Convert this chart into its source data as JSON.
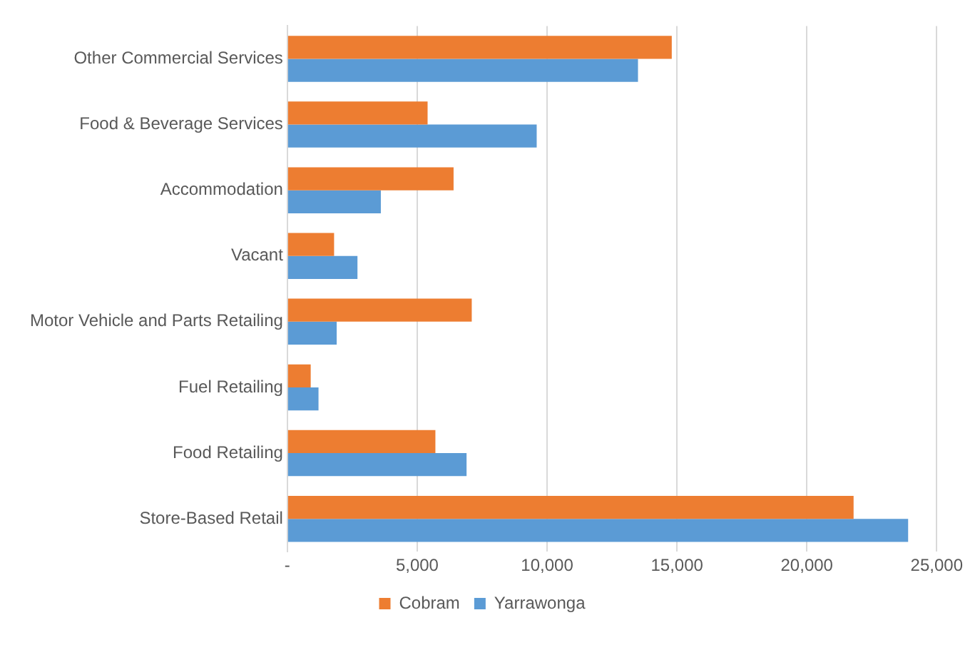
{
  "chart_data": {
    "type": "bar",
    "orientation": "horizontal",
    "categories": [
      "Other Commercial Services",
      "Food & Beverage Services",
      "Accommodation",
      "Vacant",
      "Motor Vehicle and Parts Retailing",
      "Fuel Retailing",
      "Food Retailing",
      "Store-Based Retail"
    ],
    "series": [
      {
        "name": "Cobram",
        "color": "#ed7d31",
        "values": [
          14800,
          5400,
          6400,
          1800,
          7100,
          900,
          5700,
          21800
        ]
      },
      {
        "name": "Yarrawonga",
        "color": "#5b9bd5",
        "values": [
          13500,
          9600,
          3600,
          2700,
          1900,
          1200,
          6900,
          23900
        ]
      }
    ],
    "xlim": [
      0,
      25000
    ],
    "xticks": [
      {
        "value": 0,
        "label": "-"
      },
      {
        "value": 5000,
        "label": "5,000"
      },
      {
        "value": 10000,
        "label": "10,000"
      },
      {
        "value": 15000,
        "label": "15,000"
      },
      {
        "value": 20000,
        "label": "20,000"
      },
      {
        "value": 25000,
        "label": "25,000"
      }
    ],
    "grid": "x",
    "legend": "bottom"
  }
}
